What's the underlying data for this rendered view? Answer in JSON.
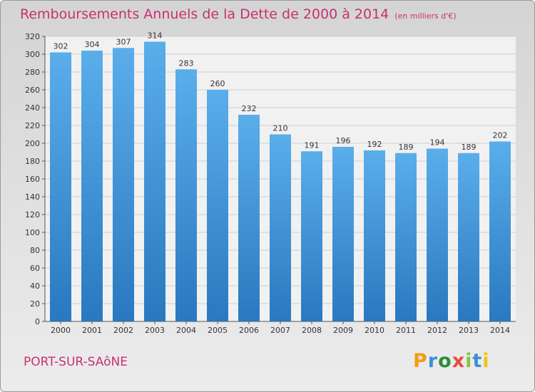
{
  "header": {
    "title": "Remboursements Annuels de la Dette de 2000 à 2014",
    "subtitle": "(en milliers d'€)"
  },
  "footer": {
    "city": "PORT-SUR-SAôNE",
    "logo_text": "Proxiti",
    "logo_colors": [
      "#f39c12",
      "#3a8fd8",
      "#2e8b3a",
      "#e74c3c",
      "#8bc34a",
      "#3a8fd8",
      "#f1c40f"
    ]
  },
  "chart_data": {
    "type": "bar",
    "title": "Remboursements Annuels de la Dette de 2000 à 2014",
    "xlabel": "",
    "ylabel": "",
    "categories": [
      "2000",
      "2001",
      "2002",
      "2003",
      "2004",
      "2005",
      "2006",
      "2007",
      "2008",
      "2009",
      "2010",
      "2011",
      "2012",
      "2013",
      "2014"
    ],
    "values": [
      302,
      304,
      307,
      314,
      283,
      260,
      232,
      210,
      191,
      196,
      192,
      189,
      194,
      189,
      202
    ],
    "ylim": [
      0,
      320
    ],
    "yticks": [
      0,
      20,
      40,
      60,
      80,
      100,
      120,
      140,
      160,
      180,
      200,
      220,
      240,
      260,
      280,
      300,
      320
    ],
    "grid": true,
    "bar_color": "#4a9ee0"
  }
}
